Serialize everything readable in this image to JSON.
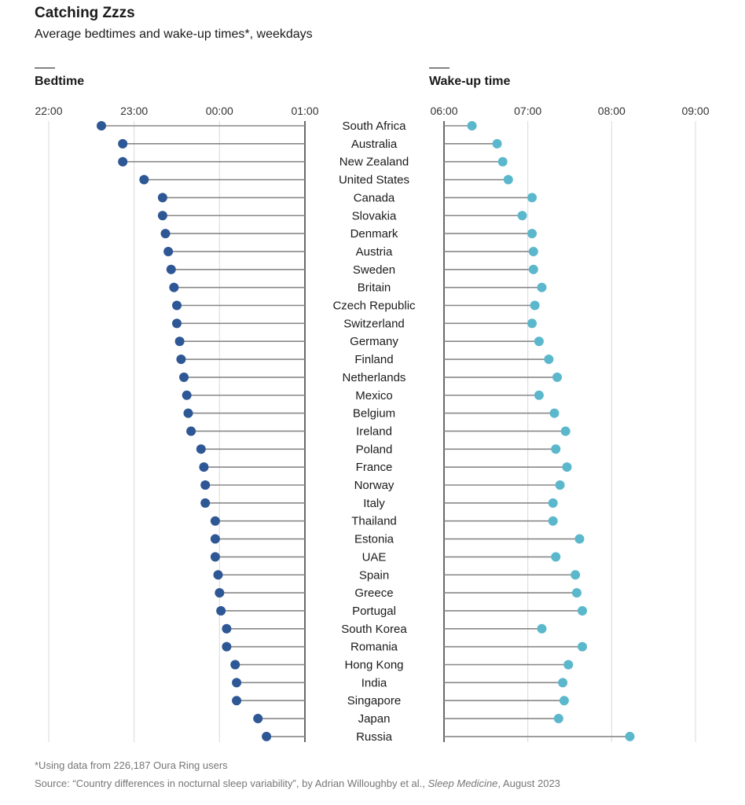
{
  "title": "Catching Zzzs",
  "subtitle": "Average bedtimes and wake-up times*, weekdays",
  "footnote": "*Using data from 226,187 Oura Ring users",
  "source_prefix": "Source: “Country differences in nocturnal sleep variability”, by Adrian Willoughby et al., ",
  "source_journal": "Sleep Medicine",
  "source_suffix": ", August 2023",
  "colors": {
    "bedtime": "#2e5795",
    "wakeup": "#5bb8cc",
    "stem": "#888888",
    "axis": "#1a1a1a",
    "grid": "#d9d9d9"
  },
  "chart_data": [
    {
      "type": "lollipop",
      "title": "Bedtime",
      "x_ticks": [
        "22:00",
        "23:00",
        "00:00",
        "01:00"
      ],
      "baseline": "01:00",
      "categories": [
        "South Africa",
        "Australia",
        "New Zealand",
        "United States",
        "Canada",
        "Slovakia",
        "Denmark",
        "Austria",
        "Sweden",
        "Britain",
        "Czech Republic",
        "Switzerland",
        "Germany",
        "Finland",
        "Netherlands",
        "Mexico",
        "Belgium",
        "Ireland",
        "Poland",
        "France",
        "Norway",
        "Italy",
        "Thailand",
        "Estonia",
        "UAE",
        "Spain",
        "Greece",
        "Portugal",
        "South Korea",
        "Romania",
        "Hong Kong",
        "India",
        "Singapore",
        "Japan",
        "Russia"
      ],
      "values": [
        "22:37",
        "22:52",
        "22:52",
        "23:07",
        "23:20",
        "23:20",
        "23:22",
        "23:24",
        "23:26",
        "23:28",
        "23:30",
        "23:30",
        "23:32",
        "23:33",
        "23:35",
        "23:37",
        "23:38",
        "23:40",
        "23:47",
        "23:49",
        "23:50",
        "23:50",
        "23:57",
        "23:57",
        "23:57",
        "23:59",
        "24:00",
        "24:01",
        "24:05",
        "24:05",
        "24:11",
        "24:12",
        "24:12",
        "24:27",
        "24:33"
      ]
    },
    {
      "type": "lollipop",
      "title": "Wake-up time",
      "x_ticks": [
        "06:00",
        "07:00",
        "08:00",
        "09:00"
      ],
      "baseline": "06:00",
      "categories": [
        "South Africa",
        "Australia",
        "New Zealand",
        "United States",
        "Canada",
        "Slovakia",
        "Denmark",
        "Austria",
        "Sweden",
        "Britain",
        "Czech Republic",
        "Switzerland",
        "Germany",
        "Finland",
        "Netherlands",
        "Mexico",
        "Belgium",
        "Ireland",
        "Poland",
        "France",
        "Norway",
        "Italy",
        "Thailand",
        "Estonia",
        "UAE",
        "Spain",
        "Greece",
        "Portugal",
        "South Korea",
        "Romania",
        "Hong Kong",
        "India",
        "Singapore",
        "Japan",
        "Russia"
      ],
      "values": [
        "06:20",
        "06:38",
        "06:42",
        "06:46",
        "07:03",
        "06:56",
        "07:03",
        "07:04",
        "07:04",
        "07:10",
        "07:05",
        "07:03",
        "07:08",
        "07:15",
        "07:21",
        "07:08",
        "07:19",
        "07:27",
        "07:20",
        "07:28",
        "07:23",
        "07:18",
        "07:18",
        "07:37",
        "07:20",
        "07:34",
        "07:35",
        "07:39",
        "07:10",
        "07:39",
        "07:29",
        "07:25",
        "07:26",
        "07:22",
        "08:13"
      ]
    }
  ]
}
